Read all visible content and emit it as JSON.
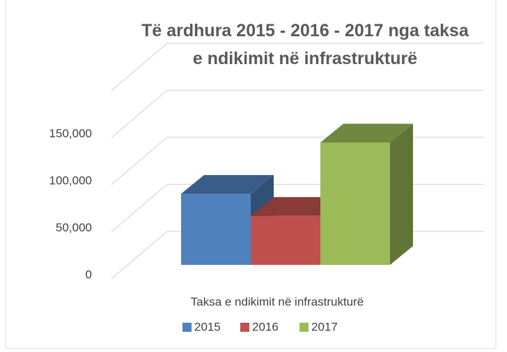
{
  "chart_data": {
    "type": "bar3d",
    "title": "Të ardhura 2015 - 2016 - 2017 nga taksa e ndikimit në infrastrukturë",
    "categories": [
      "Taksa e ndikimit në infrastrukturë"
    ],
    "series": [
      {
        "name": "2015",
        "color": "#4f81bd",
        "values": [
          75500
        ]
      },
      {
        "name": "2016",
        "color": "#c0504d",
        "values": [
          52000
        ]
      },
      {
        "name": "2017",
        "color": "#9bbb59",
        "values": [
          130000
        ]
      }
    ],
    "ylim": [
      0,
      200000
    ],
    "yticks": [
      {
        "value": 0,
        "label": "0"
      },
      {
        "value": 50000,
        "label": "50,000"
      },
      {
        "value": 100000,
        "label": "100,000"
      },
      {
        "value": 150000,
        "label": "150,000"
      }
    ],
    "grid": true,
    "legend": "bottom"
  }
}
